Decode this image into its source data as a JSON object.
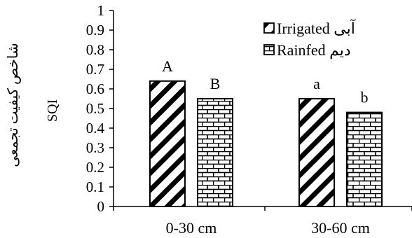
{
  "chart_data": {
    "type": "bar",
    "categories": [
      "0-30 cm",
      "30-60 cm"
    ],
    "series": [
      {
        "name": "Irrigated آبی",
        "values": [
          0.64,
          0.55
        ],
        "pattern": "diagonal-stripes",
        "letters": [
          "A",
          "a"
        ]
      },
      {
        "name": "Rainfed دیم",
        "values": [
          0.55,
          0.48
        ],
        "pattern": "brick",
        "letters": [
          "B",
          "b"
        ]
      }
    ],
    "ylabel": "SQI",
    "ylabel_fa": "شاخص کیفیت تجمعی",
    "ylim": [
      0,
      1
    ],
    "yticks": [
      0,
      0.1,
      0.2,
      0.3,
      0.4,
      0.5,
      0.6,
      0.7,
      0.8,
      0.9,
      1
    ],
    "yticklabels": [
      "0",
      "0.1",
      "0.2",
      "0.3",
      "0.4",
      "0.5",
      "0.6",
      "0.7",
      "0.8",
      "0.9",
      "1"
    ],
    "grid": false,
    "legend_position": "top-right",
    "colors": {
      "bar_fill": "#ffffff",
      "stroke": "#000000"
    }
  }
}
